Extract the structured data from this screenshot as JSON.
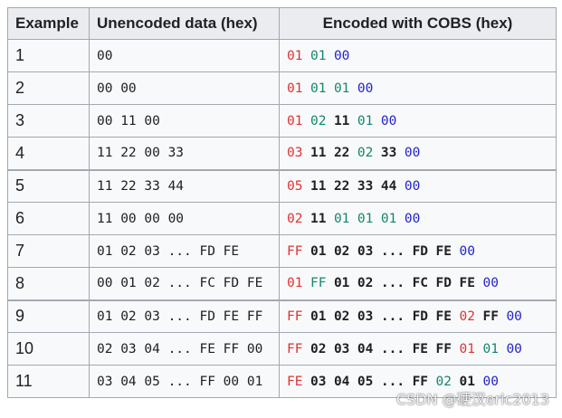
{
  "table": {
    "headers": [
      "Example",
      "Unencoded data (hex)",
      "Encoded with COBS (hex)"
    ],
    "rows": [
      {
        "example": "1",
        "unencoded": "00",
        "encoded": [
          [
            "ov",
            "01"
          ],
          [
            "gr",
            "01"
          ],
          [
            "bl",
            "00"
          ]
        ]
      },
      {
        "example": "2",
        "unencoded": "00 00",
        "encoded": [
          [
            "ov",
            "01"
          ],
          [
            "gr",
            "01"
          ],
          [
            "gr",
            "01"
          ],
          [
            "bl",
            "00"
          ]
        ]
      },
      {
        "example": "3",
        "unencoded": "00 11 00",
        "encoded": [
          [
            "ov",
            "01"
          ],
          [
            "gr",
            "02"
          ],
          [
            "dt",
            "11"
          ],
          [
            "gr",
            "01"
          ],
          [
            "bl",
            "00"
          ]
        ]
      },
      {
        "example": "4",
        "unencoded": "11 22 00 33",
        "encoded": [
          [
            "ov",
            "03"
          ],
          [
            "dt",
            "11"
          ],
          [
            "dt",
            "22"
          ],
          [
            "gr",
            "02"
          ],
          [
            "dt",
            "33"
          ],
          [
            "bl",
            "00"
          ]
        ]
      },
      {
        "example": "5",
        "unencoded": "11 22 33 44",
        "encoded": [
          [
            "ov",
            "05"
          ],
          [
            "dt",
            "11"
          ],
          [
            "dt",
            "22"
          ],
          [
            "dt",
            "33"
          ],
          [
            "dt",
            "44"
          ],
          [
            "bl",
            "00"
          ]
        ]
      },
      {
        "example": "6",
        "unencoded": "11 00 00 00",
        "encoded": [
          [
            "ov",
            "02"
          ],
          [
            "dt",
            "11"
          ],
          [
            "gr",
            "01"
          ],
          [
            "gr",
            "01"
          ],
          [
            "gr",
            "01"
          ],
          [
            "bl",
            "00"
          ]
        ]
      },
      {
        "example": "7",
        "unencoded": "01 02 03 ... FD FE",
        "encoded": [
          [
            "ov",
            "FF"
          ],
          [
            "dt",
            "01"
          ],
          [
            "dt",
            "02"
          ],
          [
            "dt",
            "03"
          ],
          [
            "dt",
            "..."
          ],
          [
            "dt",
            "FD"
          ],
          [
            "dt",
            "FE"
          ],
          [
            "bl",
            "00"
          ]
        ]
      },
      {
        "example": "8",
        "unencoded": "00 01 02 ... FC FD FE",
        "encoded": [
          [
            "ov",
            "01"
          ],
          [
            "gr",
            "FF"
          ],
          [
            "dt",
            "01"
          ],
          [
            "dt",
            "02"
          ],
          [
            "dt",
            "..."
          ],
          [
            "dt",
            "FC"
          ],
          [
            "dt",
            "FD"
          ],
          [
            "dt",
            "FE"
          ],
          [
            "bl",
            "00"
          ]
        ]
      },
      {
        "example": "9",
        "unencoded": "01 02 03 ... FD FE FF",
        "encoded": [
          [
            "ov",
            "FF"
          ],
          [
            "dt",
            "01"
          ],
          [
            "dt",
            "02"
          ],
          [
            "dt",
            "03"
          ],
          [
            "dt",
            "..."
          ],
          [
            "dt",
            "FD"
          ],
          [
            "dt",
            "FE"
          ],
          [
            "ov",
            "02"
          ],
          [
            "dt",
            "FF"
          ],
          [
            "bl",
            "00"
          ]
        ]
      },
      {
        "example": "10",
        "unencoded": "02 03 04 ... FE FF 00",
        "encoded": [
          [
            "ov",
            "FF"
          ],
          [
            "dt",
            "02"
          ],
          [
            "dt",
            "03"
          ],
          [
            "dt",
            "04"
          ],
          [
            "dt",
            "..."
          ],
          [
            "dt",
            "FE"
          ],
          [
            "dt",
            "FF"
          ],
          [
            "ov",
            "01"
          ],
          [
            "gr",
            "01"
          ],
          [
            "bl",
            "00"
          ]
        ]
      },
      {
        "example": "11",
        "unencoded": "03 04 05 ... FF 00 01",
        "encoded": [
          [
            "ov",
            "FE"
          ],
          [
            "dt",
            "03"
          ],
          [
            "dt",
            "04"
          ],
          [
            "dt",
            "05"
          ],
          [
            "dt",
            "..."
          ],
          [
            "dt",
            "FF"
          ],
          [
            "gr",
            "02"
          ],
          [
            "dt",
            "01"
          ],
          [
            "bl",
            "00"
          ]
        ]
      }
    ],
    "group_starts": [
      4,
      8
    ]
  },
  "colors": {
    "overhead": "#dd3333",
    "zero_pointer": "#14866d",
    "delimiter": "#2222cc",
    "data": "#202122"
  },
  "watermark": "CSDN @硬汉eric2013"
}
